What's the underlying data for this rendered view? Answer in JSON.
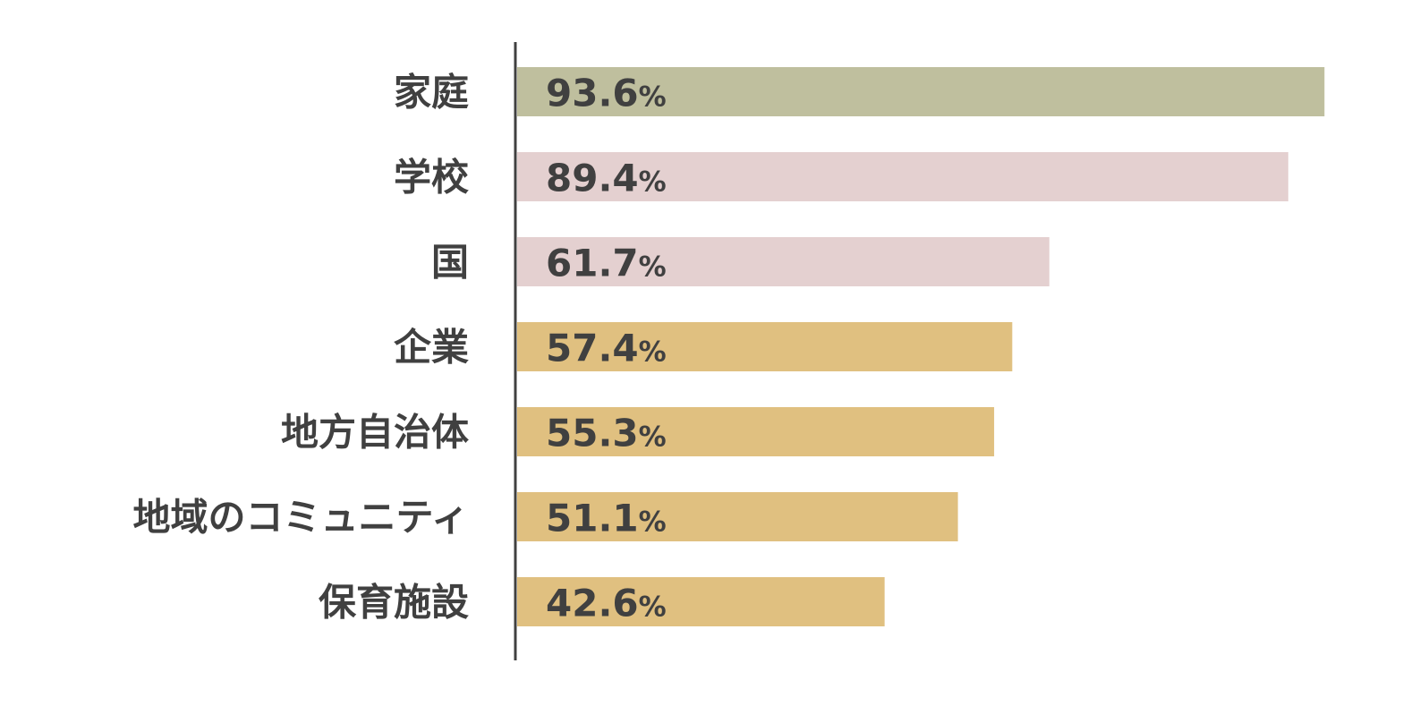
{
  "chart_data": {
    "type": "bar",
    "orientation": "horizontal",
    "categories": [
      "家庭",
      "学校",
      "国",
      "企業",
      "地方自治体",
      "地域のコミュニティ",
      "保育施設"
    ],
    "values": [
      93.6,
      89.4,
      61.7,
      57.4,
      55.3,
      51.1,
      42.6
    ],
    "value_labels": [
      "93.6",
      "89.4",
      "61.7",
      "57.4",
      "55.3",
      "51.1",
      "42.6"
    ],
    "unit": "%",
    "bar_colors": [
      "#bfbf9e",
      "#e4d0d0",
      "#e4d0d0",
      "#e0c080",
      "#e0c080",
      "#e0c080",
      "#e0c080"
    ],
    "xlim": [
      0,
      100
    ],
    "grid": false,
    "legend": "none",
    "title": "",
    "xlabel": "",
    "ylabel": ""
  }
}
